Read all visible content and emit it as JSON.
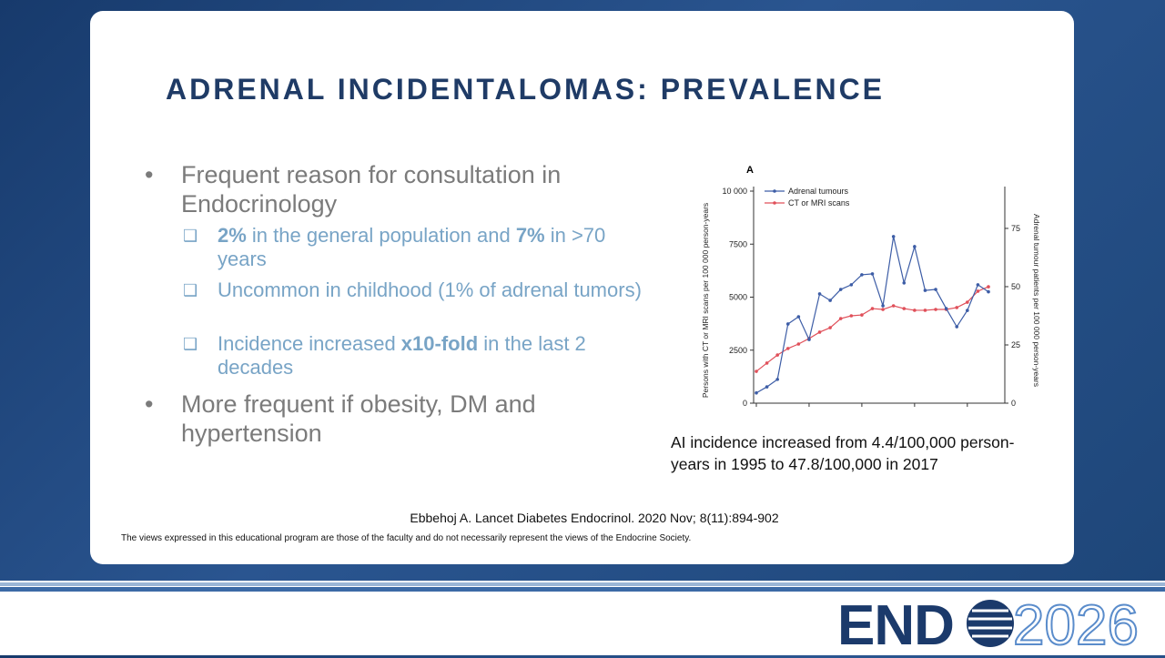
{
  "slide": {
    "title": "ADRENAL INCIDENTALOMAS: PREVALENCE",
    "bullets": [
      {
        "text": "Frequent reason for consultation in Endocrinology",
        "sub": [
          [
            "2%",
            " in the general population and ",
            "7%",
            " in >70 years"
          ],
          [
            "Uncommon in childhood (1% of adrenal tumors)"
          ],
          [
            "Incidence increased ",
            "x10-fold",
            " in the last 2 decades"
          ]
        ]
      },
      {
        "text": "More frequent if obesity, DM and hypertension"
      }
    ],
    "caption": "AI incidence increased from 4.4/100,000 person-years in 1995 to 47.8/100,000 in 2017",
    "citation": "Ebbehoj A. Lancet Diabetes Endocrinol. 2020 Nov; 8(11):894-902",
    "disclaimer": "The views expressed in this educational program are those of the faculty and do not necessarily represent the views of the Endocrine Society."
  },
  "chart_data": {
    "type": "line",
    "panel_label": "A",
    "y_label": "Persons with CT or MRI scans per 100 000 person-years",
    "y2_label": "Adrenal tumour patients per 100 000 person-years",
    "categories": [
      null,
      null,
      null,
      null,
      null,
      null,
      null,
      null,
      null,
      null,
      null,
      null,
      null,
      null,
      null,
      null,
      null,
      null,
      null,
      null,
      null,
      null,
      null
    ],
    "ylim": [
      0,
      10000
    ],
    "yticks": [
      0,
      2500,
      5000,
      7500,
      {
        "value": 10000,
        "label": "10 000"
      }
    ],
    "y2lim": [
      0,
      91
    ],
    "y2ticks": [
      0,
      25,
      50,
      75
    ],
    "series": [
      {
        "name": "Adrenal tumours",
        "color": "#3d5da6",
        "axis": "y2",
        "values": [
          4.4,
          7.0,
          10.2,
          34,
          37.1,
          27.3,
          46.9,
          44.1,
          48.8,
          50.8,
          55.1,
          55.5,
          41.8,
          71.5,
          51.6,
          67.2,
          48.4,
          48.8,
          40.6,
          32.8,
          39.8,
          50.8,
          47.8
        ]
      },
      {
        "name": "CT or MRI scans",
        "color": "#e0505a",
        "values": [
          1500,
          1890,
          2270,
          2580,
          2790,
          3050,
          3350,
          3560,
          3990,
          4120,
          4160,
          4460,
          4420,
          4590,
          4460,
          4380,
          4380,
          4420,
          4420,
          4510,
          4760,
          5280,
          5490
        ]
      }
    ]
  },
  "logo": {
    "left": "END",
    "right": "2026"
  }
}
